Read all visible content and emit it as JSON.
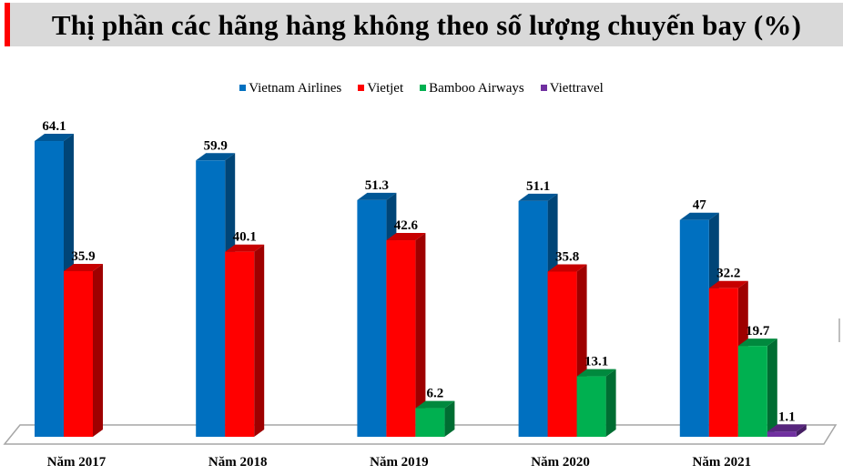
{
  "chart_data": {
    "type": "bar",
    "title": "Thị phần các hãng hàng không theo số lượng chuyến bay (%)",
    "categories": [
      "Năm 2017",
      "Năm 2018",
      "Năm 2019",
      "Năm 2020",
      "Năm 2021"
    ],
    "series": [
      {
        "name": "Vietnam Airlines",
        "color": "#0070c0",
        "values": [
          64.1,
          59.9,
          51.3,
          51.1,
          47
        ]
      },
      {
        "name": "Vietjet",
        "color": "#ff0000",
        "values": [
          35.9,
          40.1,
          42.6,
          35.8,
          32.2
        ]
      },
      {
        "name": "Bamboo Airways",
        "color": "#00b050",
        "values": [
          null,
          null,
          6.2,
          13.1,
          19.7
        ]
      },
      {
        "name": "Viettravel",
        "color": "#7030a0",
        "values": [
          null,
          null,
          null,
          null,
          1.1
        ]
      }
    ],
    "style": "3d-clustered-column",
    "legend_position": "top",
    "grid": false,
    "ylim": [
      0,
      70
    ]
  }
}
